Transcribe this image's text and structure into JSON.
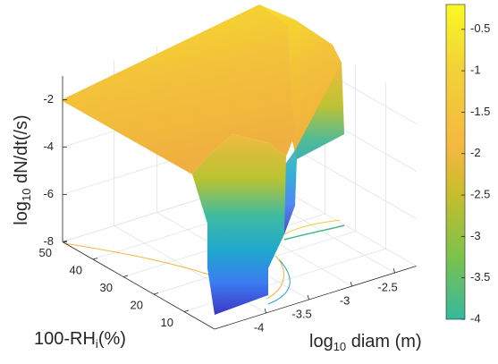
{
  "chart_data": {
    "type": "surface3d",
    "xlabel": {
      "base": "log",
      "sub": "10",
      "rest": " diam (m)"
    },
    "ylabel": {
      "base": "100-RH",
      "sub": "i",
      "rest": "(%)"
    },
    "zlabel": {
      "base": "log",
      "sub": "10",
      "rest": " dN/dt(/s)"
    },
    "xlim": [
      -4.6,
      -2.25
    ],
    "xticks": [
      -4,
      -3.5,
      -3,
      -2.5
    ],
    "ylim": [
      0,
      50
    ],
    "yticks": [
      10,
      20,
      30,
      40,
      50
    ],
    "zlim": [
      -8,
      -1
    ],
    "zticks": [
      -8,
      -6,
      -4,
      -2
    ],
    "colorbar": {
      "clim": [
        -4,
        -0.2
      ],
      "ticks": [
        -4,
        -3.5,
        -3,
        -2.5,
        -2,
        -1.5,
        -1,
        -0.5
      ]
    },
    "grid": true
  }
}
